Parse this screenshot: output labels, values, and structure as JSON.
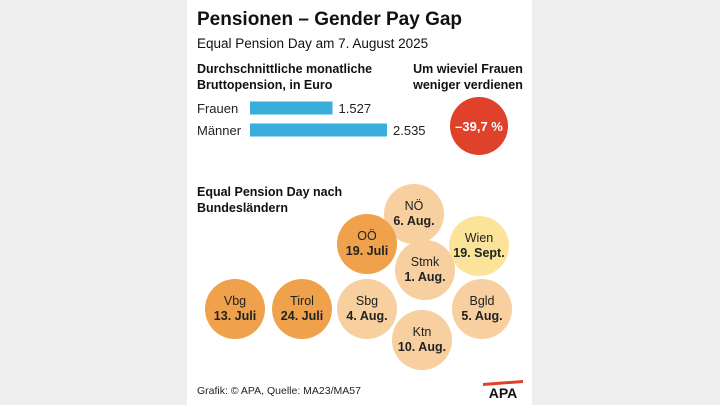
{
  "title": "Pensionen – Gender Pay Gap",
  "subtitle": "Equal Pension Day am 7. August 2025",
  "bar_heading": "Durchschnittliche monatliche Bruttopension, in Euro",
  "gap_heading": "Um wieviel Frauen weniger verdienen",
  "gap_value": "–39,7 %",
  "days_heading": "Equal Pension Day nach Bundesländern",
  "source": "Grafik: © APA, Quelle: MA23/MA57",
  "logo_text": "APA",
  "colors": {
    "bar": "#3aaedb",
    "gap": "#e0412a",
    "early": "#f0a14c",
    "mid": "#f8cf9f",
    "late": "#fbe49a",
    "logo": "#e0412a"
  },
  "chart_data": {
    "type": "bar",
    "orientation": "horizontal",
    "categories": [
      "Frauen",
      "Männer"
    ],
    "values": [
      1527,
      2535
    ],
    "value_labels": [
      "1.527",
      "2.535"
    ],
    "xlim": [
      0,
      2535
    ],
    "unit": "Euro",
    "grid": false
  },
  "states": [
    {
      "name": "NÖ",
      "date": "6. Aug.",
      "tone": "mid"
    },
    {
      "name": "OÖ",
      "date": "19. Juli",
      "tone": "early"
    },
    {
      "name": "Wien",
      "date": "19. Sept.",
      "tone": "late"
    },
    {
      "name": "Stmk",
      "date": "1. Aug.",
      "tone": "mid"
    },
    {
      "name": "Vbg",
      "date": "13. Juli",
      "tone": "early"
    },
    {
      "name": "Tirol",
      "date": "24. Juli",
      "tone": "early"
    },
    {
      "name": "Sbg",
      "date": "4. Aug.",
      "tone": "mid"
    },
    {
      "name": "Bgld",
      "date": "5. Aug.",
      "tone": "mid"
    },
    {
      "name": "Ktn",
      "date": "10. Aug.",
      "tone": "mid"
    }
  ]
}
